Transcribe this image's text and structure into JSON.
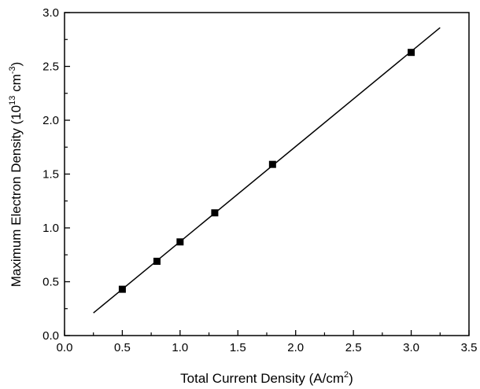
{
  "chart_data": {
    "type": "scatter",
    "title": "",
    "xlabel": {
      "prefix": "Total Current Density (A/cm",
      "sup": "2",
      "suffix": ")"
    },
    "ylabel": {
      "prefix": "Maximum Electron Density (10",
      "sup1": "13",
      "mid": " cm",
      "sup2": "-3",
      "suffix": ")"
    },
    "xlim": [
      0.0,
      3.5
    ],
    "ylim": [
      0.0,
      3.0
    ],
    "xticks": [
      "0.0",
      "0.5",
      "1.0",
      "1.5",
      "2.0",
      "2.5",
      "3.0",
      "3.5"
    ],
    "yticks": [
      "0.0",
      "0.5",
      "1.0",
      "1.5",
      "2.0",
      "2.5",
      "3.0"
    ],
    "grid": false,
    "series": [
      {
        "marker": "square",
        "color": "#000000",
        "x": [
          0.5,
          0.8,
          1.0,
          1.3,
          1.8,
          3.0
        ],
        "y": [
          0.43,
          0.69,
          0.87,
          1.14,
          1.59,
          2.63
        ]
      }
    ],
    "fit_line": {
      "color": "#000000",
      "x": [
        0.25,
        3.25
      ],
      "y": [
        0.21,
        2.86
      ]
    }
  }
}
